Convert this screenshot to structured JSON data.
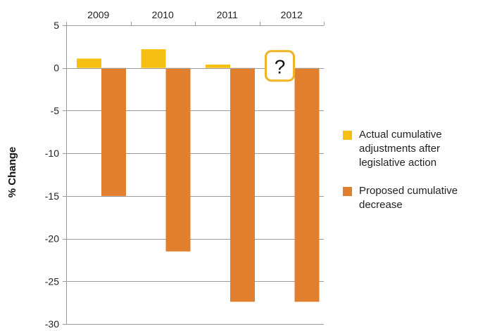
{
  "chart_data": {
    "type": "bar",
    "categories": [
      "2009",
      "2010",
      "2011",
      "2012"
    ],
    "series": [
      {
        "name": "Actual cumulative adjustments after legislative action",
        "values": [
          1.1,
          2.2,
          0.4,
          null
        ],
        "color": "#F5C011"
      },
      {
        "name": "Proposed cumulative decrease",
        "values": [
          -15.0,
          -21.5,
          -27.4,
          -27.4
        ],
        "color": "#E07F2E"
      }
    ],
    "ylabel": "% Change",
    "ylim": [
      -30,
      5
    ],
    "yticks": [
      "5",
      "0",
      "-5",
      "-10",
      "-15",
      "-20",
      "-25",
      "-30"
    ],
    "grid": true,
    "x_axis_position": "top",
    "legend_position": "right",
    "annotation": {
      "text": "?",
      "category": "2012",
      "border_color": "#F0B323"
    }
  }
}
